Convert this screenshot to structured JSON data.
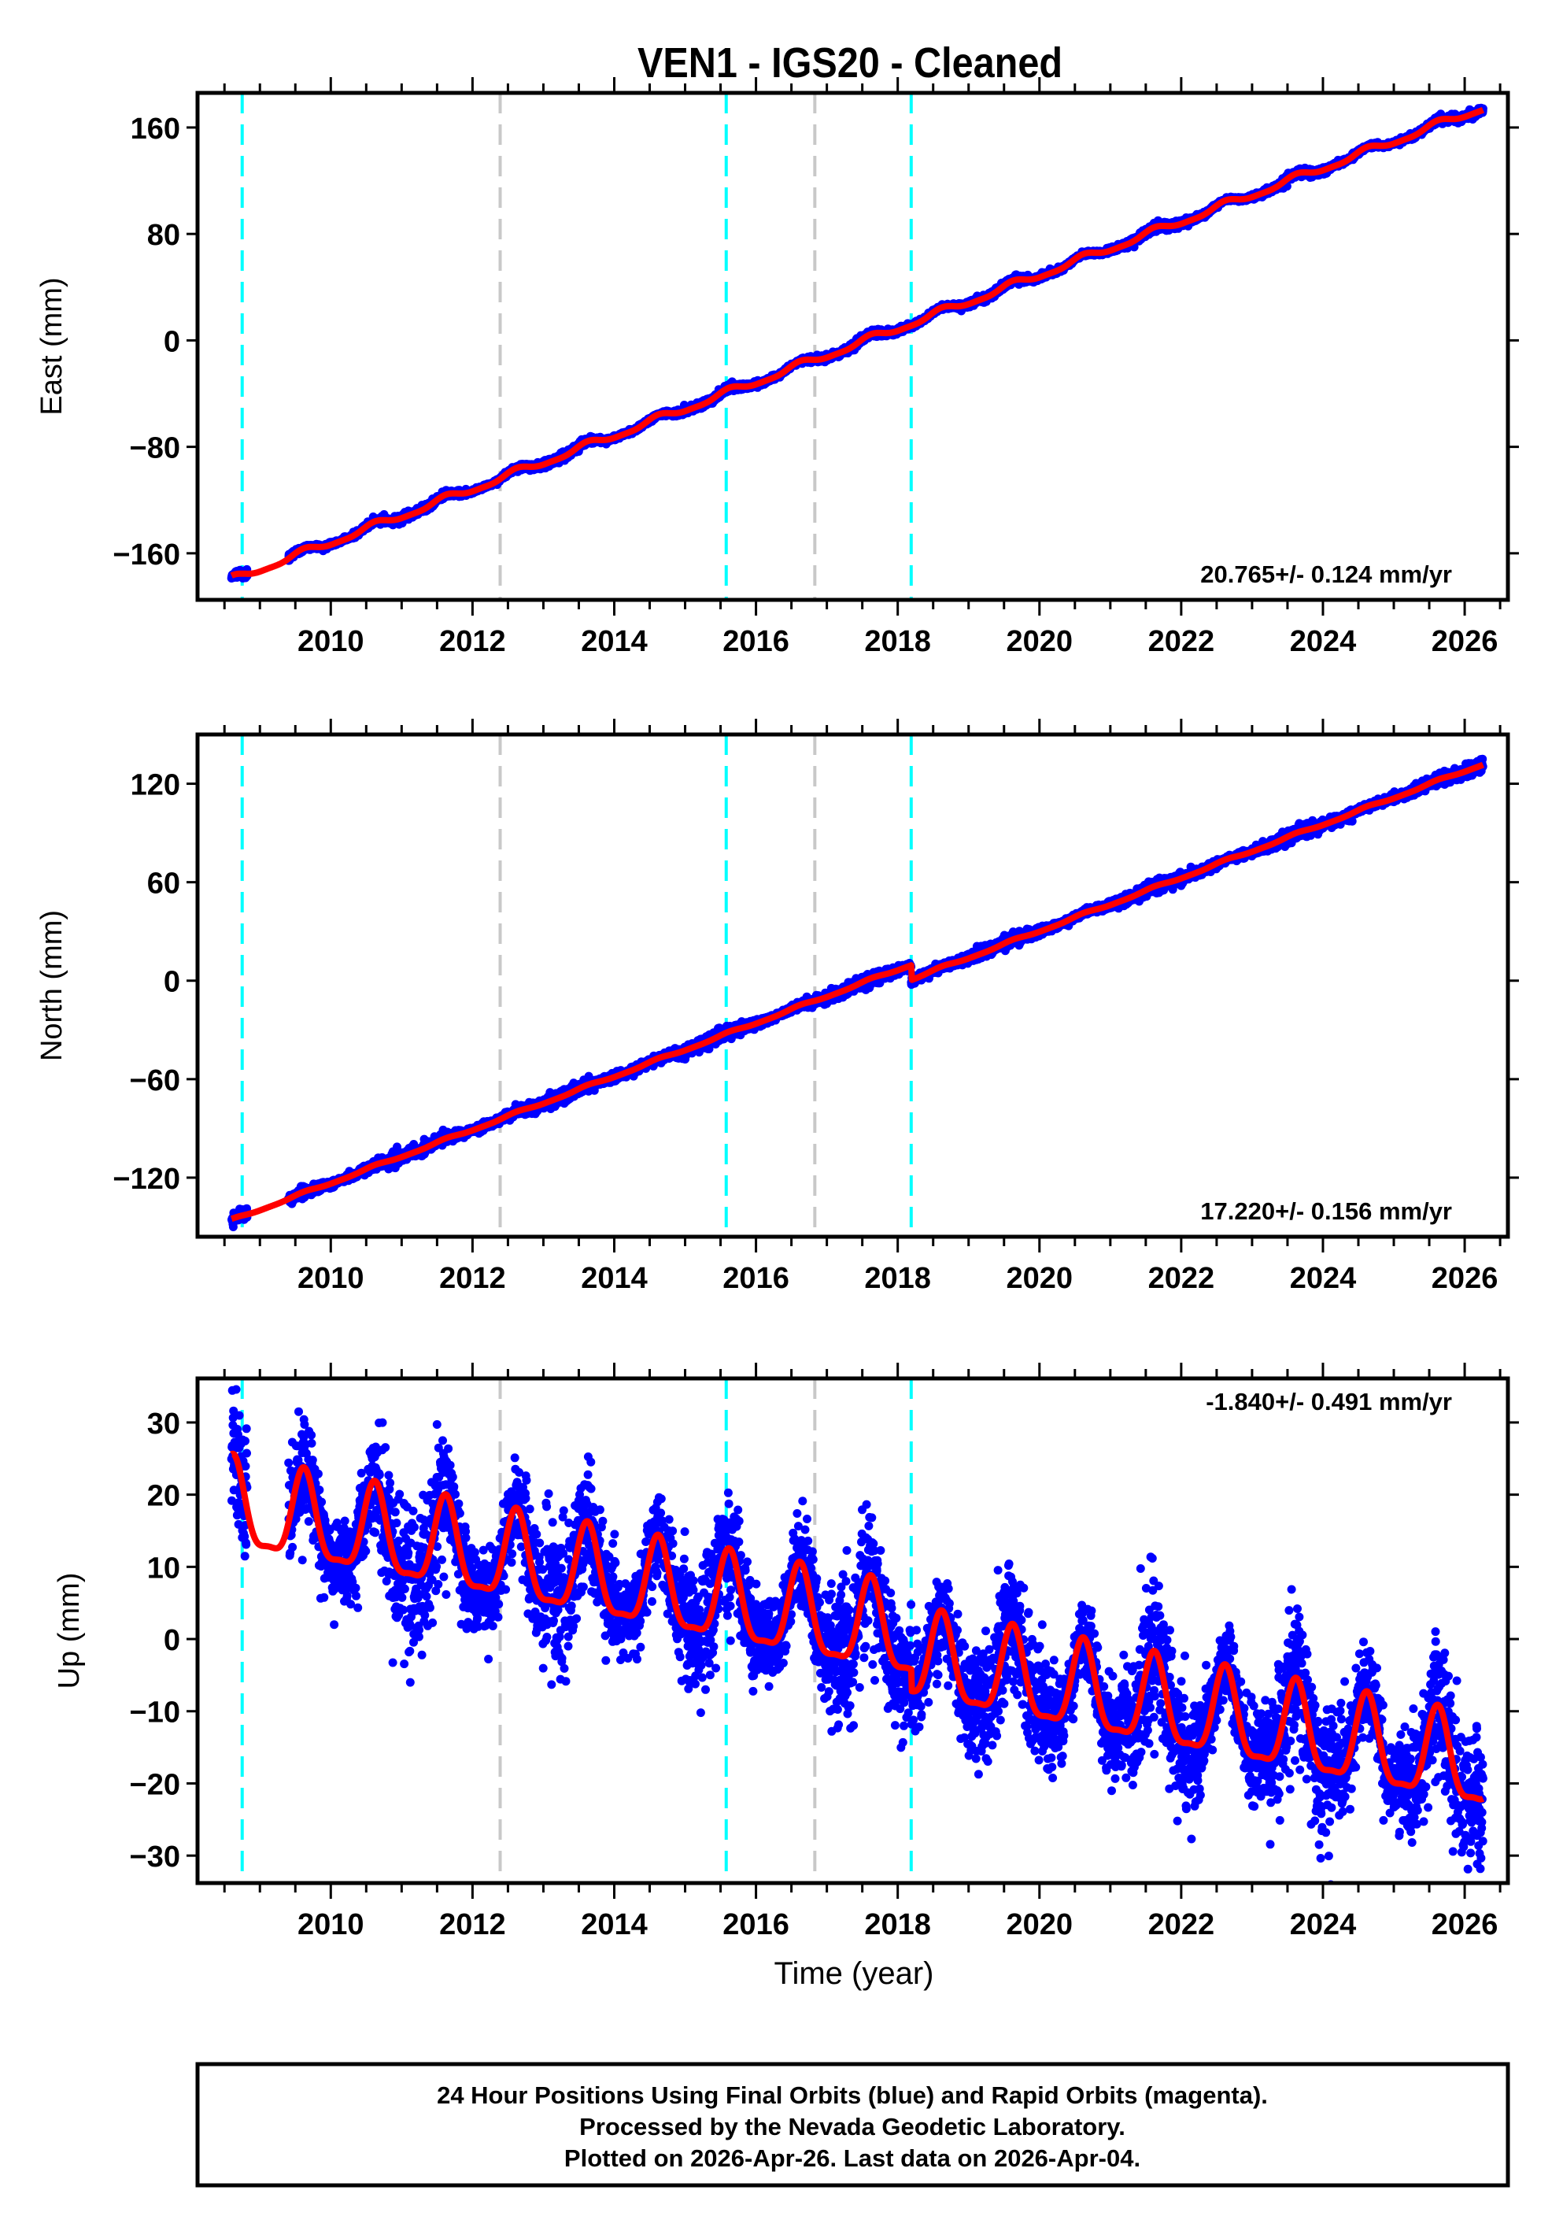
{
  "chart_data": {
    "type": "scatter",
    "title": "VEN1  - IGS20 - Cleaned",
    "xlabel": "Time (year)",
    "xlim": [
      2008.12,
      2026.61
    ],
    "xticks": [
      2010,
      2012,
      2014,
      2016,
      2018,
      2020,
      2022,
      2024,
      2026
    ],
    "data_range": [
      2008.6,
      2026.26
    ],
    "data_gap": [
      2008.82,
      2009.4
    ],
    "event_lines": [
      {
        "x": 2008.75,
        "color": "#00ffff"
      },
      {
        "x": 2012.39,
        "color": "#c8c8c8"
      },
      {
        "x": 2015.58,
        "color": "#00ffff"
      },
      {
        "x": 2016.83,
        "color": "#c8c8c8"
      },
      {
        "x": 2018.19,
        "color": "#00ffff"
      }
    ],
    "colors": {
      "points": "#0000ff",
      "fit": "#ff0000"
    },
    "panels": [
      {
        "name": "east",
        "ylabel": "East (mm)",
        "ylim": [
          -195,
          186
        ],
        "yticks": [
          -160,
          -80,
          0,
          80,
          160
        ],
        "rate_label": "20.765+/- 0.124 mm/yr",
        "rate_position": "bottom-right",
        "model": {
          "start_value": -180,
          "end_value": 175,
          "seasonal_amp": 3,
          "noise_sd": 1.2,
          "steps": []
        }
      },
      {
        "name": "north",
        "ylabel": "North (mm)",
        "ylim": [
          -156,
          150
        ],
        "yticks": [
          -120,
          -60,
          0,
          60,
          120
        ],
        "rate_label": "17.220+/- 0.156 mm/yr",
        "rate_position": "bottom-right",
        "model": {
          "start_value": -146,
          "end_value": 141,
          "seasonal_amp": 0.8,
          "noise_sd": 1.5,
          "steps": [
            {
              "x": 2018.19,
              "offset": -9
            }
          ]
        }
      },
      {
        "name": "up",
        "ylabel": "Up (mm)",
        "ylim": [
          -33.8,
          36.1
        ],
        "yticks": [
          -30,
          -20,
          -10,
          0,
          10,
          20,
          30
        ],
        "rate_label": "-1.840+/- 0.491 mm/yr",
        "rate_position": "top-right",
        "model": {
          "start_value": 18,
          "end_value": -15,
          "seasonal_amp": 7,
          "noise_sd": 3.8,
          "steps": [
            {
              "x": 2018.19,
              "offset": -3
            }
          ]
        }
      }
    ]
  },
  "footer": {
    "line1": "24 Hour Positions Using Final Orbits (blue) and Rapid Orbits (magenta).",
    "line2": "Processed by the Nevada Geodetic Laboratory.",
    "line3": "Plotted on 2026-Apr-26. Last data on 2026-Apr-04."
  }
}
